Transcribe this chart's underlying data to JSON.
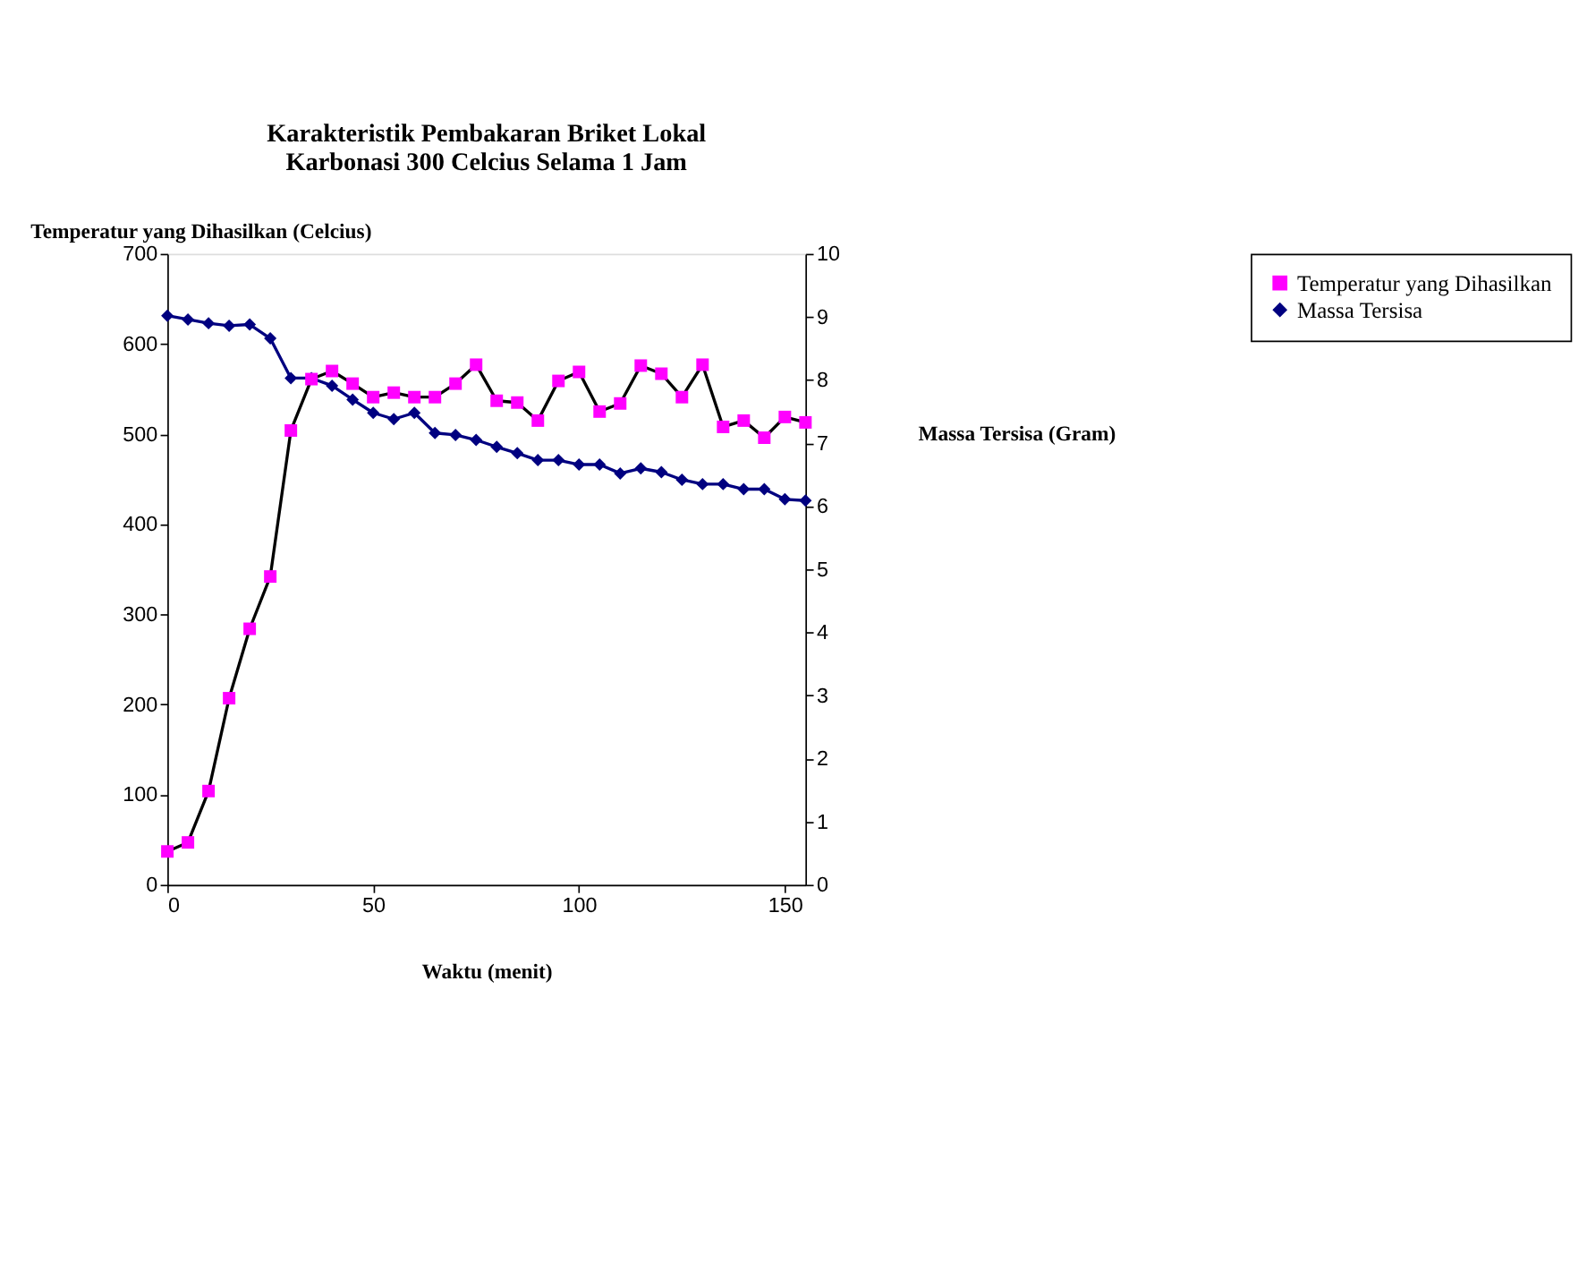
{
  "chart_data": {
    "type": "line",
    "title": [
      "Karakteristik Pembakaran Briket Lokal",
      "Karbonasi 300 Celcius Selama 1 Jam"
    ],
    "xlabel": "Waktu (menit)",
    "ylabel": "Temperatur yang Dihasilkan (Celcius)",
    "y2label": "Massa Tersisa (Gram)",
    "x": [
      0,
      5,
      10,
      15,
      20,
      25,
      30,
      35,
      40,
      45,
      50,
      55,
      60,
      65,
      70,
      75,
      80,
      85,
      90,
      95,
      100,
      105,
      110,
      115,
      120,
      125,
      130,
      135,
      140,
      145,
      150,
      155
    ],
    "xlim": [
      0,
      155
    ],
    "xticks": [
      0,
      50,
      100,
      150
    ],
    "ylim": [
      0,
      700
    ],
    "yticks": [
      0,
      100,
      200,
      300,
      400,
      500,
      600,
      700
    ],
    "y2lim": [
      0,
      10
    ],
    "y2ticks": [
      0,
      1,
      2,
      3,
      4,
      5,
      6,
      7,
      8,
      9,
      10
    ],
    "series": [
      {
        "name": "Temperatur yang Dihasilkan",
        "color": "#ff00ff",
        "marker": "square",
        "values": [
          37,
          47,
          104,
          207,
          284,
          342,
          504,
          561,
          570,
          556,
          541,
          546,
          541,
          541,
          556,
          577,
          537,
          535,
          515,
          559,
          569,
          525,
          534,
          576,
          567,
          541,
          577,
          508,
          515,
          496,
          519,
          513
        ]
      },
      {
        "name": "Massa Tersisa",
        "color": "#000080",
        "marker": "diamond",
        "axis": "y2",
        "values": [
          9.02,
          8.96,
          8.9,
          8.86,
          8.88,
          8.66,
          8.03,
          8.03,
          7.91,
          7.69,
          7.48,
          7.38,
          7.48,
          7.16,
          7.13,
          7.05,
          6.94,
          6.84,
          6.73,
          6.73,
          6.66,
          6.66,
          6.52,
          6.6,
          6.54,
          6.42,
          6.35,
          6.35,
          6.27,
          6.27,
          6.11,
          6.09
        ]
      }
    ],
    "grid": false,
    "legend": "right"
  }
}
